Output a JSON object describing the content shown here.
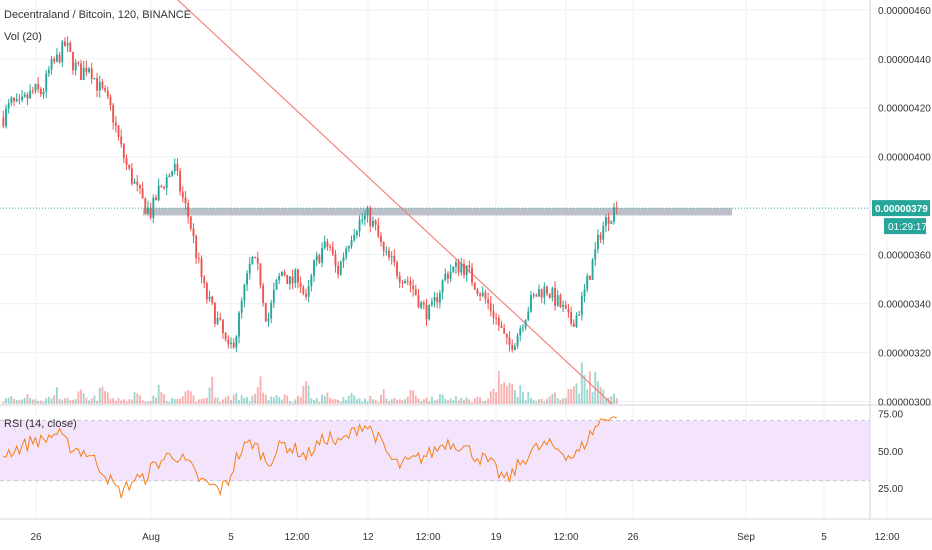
{
  "chart_data": [
    {
      "type": "candlestick",
      "title": "Decentraland / Bitcoin, 120, BINANCE",
      "volume_label": "Vol (20)",
      "price_axis": {
        "ticks": [
          "0.00000460",
          "0.00000440",
          "0.00000420",
          "0.00000400",
          "0.00000360",
          "0.00000340",
          "0.00000320",
          "0.00000300"
        ],
        "tick_values": [
          460,
          440,
          420,
          400,
          360,
          340,
          320,
          300
        ],
        "range_e8": [
          299,
          464
        ]
      },
      "time_axis": {
        "labels": [
          "26",
          "Aug",
          "5",
          "12:00",
          "12",
          "12:00",
          "19",
          "12:00",
          "26",
          "Sep",
          "5",
          "12:00"
        ]
      },
      "last_price": "0.00000379",
      "countdown": "01:29:17",
      "last_price_e8": 379,
      "resistance_zone_e8": [
        376,
        379
      ],
      "trendline_e8": {
        "start": 486,
        "end": 299
      },
      "close_path_e8": [
        416,
        422,
        420,
        424,
        427,
        426,
        436,
        440,
        446,
        438,
        434,
        438,
        430,
        425,
        418,
        405,
        395,
        388,
        381,
        377,
        386,
        391,
        396,
        384,
        374,
        358,
        344,
        337,
        330,
        320,
        328,
        345,
        358,
        352,
        332,
        346,
        354,
        348,
        352,
        340,
        355,
        362,
        364,
        352,
        362,
        370,
        374,
        376,
        370,
        360,
        357,
        352,
        350,
        345,
        338,
        336,
        344,
        352,
        354,
        356,
        352,
        347,
        342,
        337,
        330,
        322,
        326,
        334,
        341,
        345,
        346,
        342,
        338,
        332,
        336,
        346,
        358,
        370,
        376,
        379
      ],
      "volume_rel": [
        1,
        2,
        1,
        3,
        2,
        1,
        2,
        4,
        1,
        2,
        3,
        1,
        2,
        5,
        1,
        2,
        1,
        3,
        2,
        1,
        4,
        2,
        1,
        2,
        3,
        1,
        2,
        6,
        1,
        2,
        3,
        2,
        1,
        9,
        1,
        2,
        3,
        1,
        2,
        5,
        1,
        2,
        3,
        1,
        2,
        4,
        1,
        2,
        1,
        3,
        2,
        1,
        2,
        4,
        1,
        2,
        3,
        1,
        2,
        3,
        1,
        2,
        1,
        3,
        9,
        4,
        6,
        3,
        2,
        1,
        2,
        3,
        1,
        4,
        7,
        11,
        8,
        5,
        3,
        2
      ]
    },
    {
      "type": "line",
      "title": "RSI (14, close)",
      "ticks": [
        "75.00",
        "50.00",
        "25.00"
      ],
      "tick_values": [
        75,
        50,
        25
      ],
      "band": [
        30,
        70
      ],
      "range": [
        5,
        80
      ],
      "values": [
        48,
        50,
        52,
        54,
        58,
        56,
        60,
        62,
        55,
        52,
        50,
        48,
        42,
        36,
        28,
        22,
        26,
        32,
        30,
        38,
        42,
        46,
        48,
        44,
        40,
        32,
        28,
        26,
        24,
        30,
        45,
        52,
        56,
        50,
        42,
        48,
        55,
        52,
        50,
        46,
        52,
        56,
        60,
        54,
        58,
        62,
        68,
        66,
        60,
        52,
        44,
        40,
        42,
        44,
        46,
        48,
        52,
        56,
        55,
        54,
        50,
        46,
        44,
        40,
        34,
        30,
        38,
        44,
        50,
        52,
        54,
        52,
        50,
        46,
        48,
        56,
        64,
        70,
        74,
        72
      ]
    }
  ],
  "colors": {
    "up": "#26a69a",
    "down": "#ef5350",
    "trend": "#f4837d",
    "zone": "#b2b5be",
    "rsi_line": "#f57f17",
    "rsi_fill": "#f4e4fb",
    "price_tag": "#26a69a"
  }
}
